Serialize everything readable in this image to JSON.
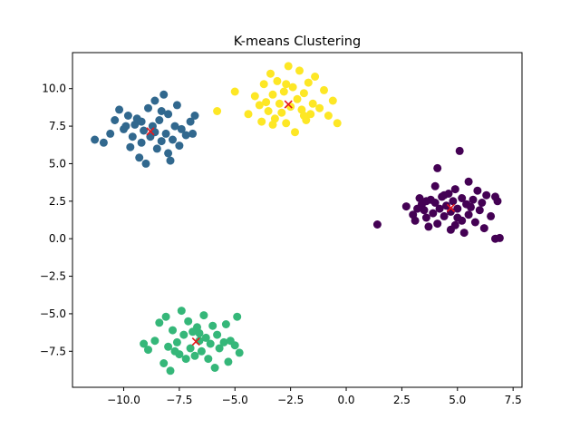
{
  "chart_data": {
    "type": "scatter",
    "title": "K-means Clustering",
    "xlabel": "",
    "ylabel": "",
    "xlim": [
      -12.3,
      7.9
    ],
    "ylim": [
      -9.9,
      12.4
    ],
    "grid": false,
    "legend": "none",
    "x_ticks": [
      -10.0,
      -7.5,
      -5.0,
      -2.5,
      0.0,
      2.5,
      5.0,
      7.5
    ],
    "x_tick_labels": [
      "−10.0",
      "−7.5",
      "−5.0",
      "−2.5",
      "0.0",
      "2.5",
      "5.0",
      "7.5"
    ],
    "y_ticks": [
      -7.5,
      -5.0,
      -2.5,
      0.0,
      2.5,
      5.0,
      7.5,
      10.0
    ],
    "y_tick_labels": [
      "−7.5",
      "−5.0",
      "−2.5",
      "0.0",
      "2.5",
      "5.0",
      "7.5",
      "10.0"
    ],
    "colors": {
      "cluster_0": "#440154",
      "cluster_1": "#31688e",
      "cluster_2": "#35b779",
      "cluster_3": "#fde725",
      "centroid": "#e8161c"
    },
    "clusters": [
      {
        "color": "#440154",
        "points": [
          [
            1.4,
            0.95
          ],
          [
            2.7,
            2.15
          ],
          [
            3.0,
            1.6
          ],
          [
            3.1,
            1.2
          ],
          [
            3.3,
            2.7
          ],
          [
            3.4,
            2.3
          ],
          [
            3.5,
            1.9
          ],
          [
            3.6,
            1.4
          ],
          [
            3.7,
            0.8
          ],
          [
            3.8,
            2.6
          ],
          [
            3.9,
            1.7
          ],
          [
            4.0,
            2.4
          ],
          [
            4.0,
            3.5
          ],
          [
            4.1,
            1.0
          ],
          [
            4.1,
            4.7
          ],
          [
            4.2,
            2.0
          ],
          [
            4.3,
            2.8
          ],
          [
            4.4,
            1.5
          ],
          [
            4.5,
            2.2
          ],
          [
            4.6,
            3.0
          ],
          [
            4.7,
            1.8
          ],
          [
            4.7,
            0.6
          ],
          [
            4.8,
            2.5
          ],
          [
            4.9,
            3.3
          ],
          [
            5.0,
            1.4
          ],
          [
            5.0,
            2.0
          ],
          [
            5.1,
            5.85
          ],
          [
            5.2,
            2.7
          ],
          [
            5.3,
            0.4
          ],
          [
            5.4,
            2.3
          ],
          [
            5.5,
            3.8
          ],
          [
            5.5,
            1.6
          ],
          [
            5.7,
            2.6
          ],
          [
            5.8,
            1.1
          ],
          [
            5.9,
            3.2
          ],
          [
            6.0,
            1.9
          ],
          [
            6.1,
            2.4
          ],
          [
            6.2,
            0.7
          ],
          [
            6.3,
            2.9
          ],
          [
            6.5,
            1.5
          ],
          [
            6.7,
            2.8
          ],
          [
            6.7,
            0.0
          ],
          [
            6.8,
            2.5
          ],
          [
            6.9,
            0.05
          ],
          [
            3.2,
            2.0
          ],
          [
            4.4,
            2.9
          ],
          [
            5.6,
            2.1
          ],
          [
            3.6,
            2.5
          ],
          [
            5.2,
            1.2
          ],
          [
            4.9,
            0.9
          ]
        ]
      },
      {
        "color": "#31688e",
        "points": [
          [
            -11.3,
            6.6
          ],
          [
            -10.9,
            6.4
          ],
          [
            -10.6,
            7.0
          ],
          [
            -10.4,
            7.9
          ],
          [
            -10.2,
            8.6
          ],
          [
            -10.0,
            7.3
          ],
          [
            -9.8,
            8.2
          ],
          [
            -9.7,
            6.1
          ],
          [
            -9.6,
            6.8
          ],
          [
            -9.5,
            7.6
          ],
          [
            -9.4,
            8.0
          ],
          [
            -9.3,
            5.4
          ],
          [
            -9.2,
            6.4
          ],
          [
            -9.1,
            7.2
          ],
          [
            -9.0,
            5.0
          ],
          [
            -8.9,
            8.7
          ],
          [
            -8.8,
            6.8
          ],
          [
            -8.7,
            7.5
          ],
          [
            -8.6,
            9.2
          ],
          [
            -8.5,
            6.0
          ],
          [
            -8.4,
            7.9
          ],
          [
            -8.3,
            6.5
          ],
          [
            -8.2,
            9.6
          ],
          [
            -8.1,
            7.0
          ],
          [
            -8.0,
            8.3
          ],
          [
            -8.0,
            5.7
          ],
          [
            -7.9,
            5.2
          ],
          [
            -7.8,
            6.6
          ],
          [
            -7.7,
            7.5
          ],
          [
            -7.6,
            8.9
          ],
          [
            -7.5,
            6.2
          ],
          [
            -7.4,
            7.3
          ],
          [
            -7.2,
            6.9
          ],
          [
            -7.0,
            7.8
          ],
          [
            -6.9,
            7.0
          ],
          [
            -6.8,
            8.2
          ],
          [
            -9.2,
            7.8
          ],
          [
            -8.6,
            7.1
          ],
          [
            -9.9,
            7.5
          ],
          [
            -8.3,
            8.5
          ]
        ]
      },
      {
        "color": "#35b779",
        "points": [
          [
            -9.1,
            -7.0
          ],
          [
            -8.9,
            -7.4
          ],
          [
            -8.6,
            -6.8
          ],
          [
            -8.4,
            -5.6
          ],
          [
            -8.2,
            -8.3
          ],
          [
            -8.0,
            -7.2
          ],
          [
            -7.9,
            -8.8
          ],
          [
            -7.8,
            -6.1
          ],
          [
            -7.6,
            -6.9
          ],
          [
            -7.5,
            -7.7
          ],
          [
            -7.4,
            -4.8
          ],
          [
            -7.3,
            -6.4
          ],
          [
            -7.2,
            -8.0
          ],
          [
            -7.1,
            -5.5
          ],
          [
            -7.0,
            -7.3
          ],
          [
            -6.9,
            -6.2
          ],
          [
            -6.8,
            -7.8
          ],
          [
            -6.7,
            -5.9
          ],
          [
            -6.6,
            -6.8
          ],
          [
            -6.5,
            -7.5
          ],
          [
            -6.4,
            -5.1
          ],
          [
            -6.3,
            -6.6
          ],
          [
            -6.2,
            -8.0
          ],
          [
            -6.1,
            -7.0
          ],
          [
            -6.0,
            -5.8
          ],
          [
            -5.9,
            -8.6
          ],
          [
            -5.8,
            -6.4
          ],
          [
            -5.7,
            -7.3
          ],
          [
            -5.5,
            -6.9
          ],
          [
            -5.4,
            -5.7
          ],
          [
            -5.3,
            -8.2
          ],
          [
            -5.2,
            -6.8
          ],
          [
            -5.0,
            -7.1
          ],
          [
            -4.9,
            -5.2
          ],
          [
            -4.8,
            -7.6
          ],
          [
            -8.1,
            -5.2
          ],
          [
            -7.7,
            -7.5
          ],
          [
            -6.6,
            -6.3
          ]
        ]
      },
      {
        "color": "#fde725",
        "points": [
          [
            -5.8,
            8.5
          ],
          [
            -5.0,
            9.8
          ],
          [
            -4.4,
            8.3
          ],
          [
            -4.1,
            9.5
          ],
          [
            -3.9,
            8.9
          ],
          [
            -3.8,
            7.8
          ],
          [
            -3.7,
            10.3
          ],
          [
            -3.6,
            9.1
          ],
          [
            -3.5,
            8.5
          ],
          [
            -3.4,
            11.0
          ],
          [
            -3.3,
            9.6
          ],
          [
            -3.2,
            8.0
          ],
          [
            -3.1,
            10.5
          ],
          [
            -3.0,
            9.0
          ],
          [
            -2.9,
            8.4
          ],
          [
            -2.8,
            9.8
          ],
          [
            -2.7,
            7.7
          ],
          [
            -2.6,
            11.5
          ],
          [
            -2.5,
            8.8
          ],
          [
            -2.4,
            10.1
          ],
          [
            -2.3,
            7.1
          ],
          [
            -2.2,
            9.3
          ],
          [
            -2.1,
            11.2
          ],
          [
            -2.0,
            8.6
          ],
          [
            -1.9,
            9.7
          ],
          [
            -1.8,
            7.9
          ],
          [
            -1.7,
            10.4
          ],
          [
            -1.6,
            8.3
          ],
          [
            -1.5,
            9.0
          ],
          [
            -1.4,
            10.8
          ],
          [
            -1.2,
            8.7
          ],
          [
            -1.0,
            9.9
          ],
          [
            -0.8,
            8.2
          ],
          [
            -0.6,
            9.2
          ],
          [
            -0.4,
            7.7
          ],
          [
            -3.3,
            7.6
          ],
          [
            -2.7,
            10.3
          ],
          [
            -1.9,
            8.2
          ]
        ]
      }
    ],
    "centroids": [
      [
        4.7,
        2.05
      ],
      [
        -8.8,
        7.15
      ],
      [
        -6.75,
        -6.85
      ],
      [
        -2.6,
        8.95
      ]
    ]
  }
}
